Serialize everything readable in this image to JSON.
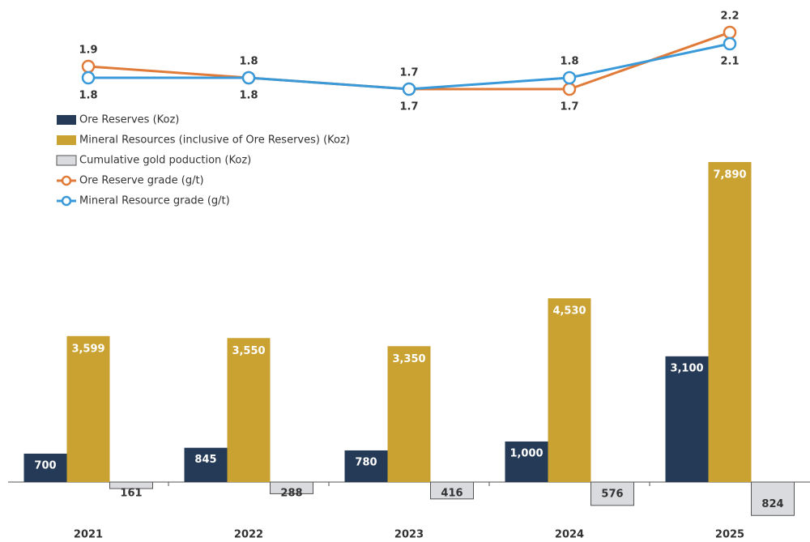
{
  "chart_data": {
    "type": "bar-line",
    "categories": [
      "2021",
      "2022",
      "2023",
      "2024",
      "2025"
    ],
    "series": [
      {
        "name": "Ore Reserves (Koz)",
        "type": "bar",
        "color": "#253a56",
        "values": [
          700,
          845,
          780,
          1000,
          3100
        ],
        "value_labels": [
          "700",
          "845",
          "780",
          "1,000",
          "3,100"
        ]
      },
      {
        "name": "Mineral Resources (inclusive of Ore Reserves) (Koz)",
        "type": "bar",
        "color": "#c9a232",
        "values": [
          3599,
          3550,
          3350,
          4530,
          7890
        ],
        "value_labels": [
          "3,599",
          "3,550",
          "3,350",
          "4,530",
          "7,890"
        ]
      },
      {
        "name": "Cumulative gold poduction (Koz)",
        "type": "bar",
        "color": "#d9dbde",
        "values": [
          -161,
          -288,
          -416,
          -576,
          -824
        ],
        "value_labels": [
          "161",
          "288",
          "416",
          "576",
          "824"
        ]
      },
      {
        "name": "Ore Reserve grade (g/t)",
        "type": "line",
        "color": "#e07b39",
        "values": [
          1.9,
          1.8,
          1.7,
          1.7,
          2.2
        ]
      },
      {
        "name": "Mineral Resource grade (g/t)",
        "type": "line",
        "color": "#3a9ad9",
        "values": [
          1.8,
          1.8,
          1.7,
          1.8,
          2.1
        ]
      }
    ]
  }
}
